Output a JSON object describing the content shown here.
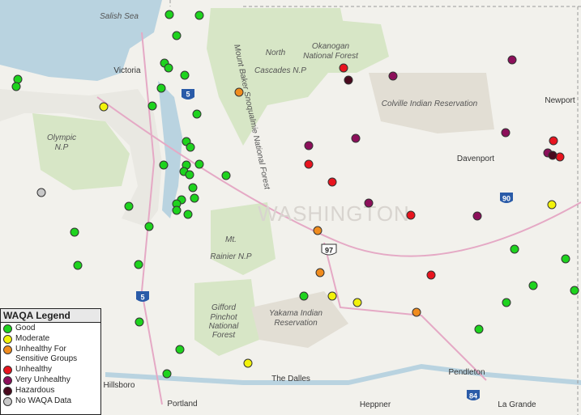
{
  "labels": [
    "Salish Sea",
    "Victoria",
    "North",
    "Cascades N.P",
    "Okanogan",
    "National Forest",
    "Colville Indian Reservation",
    "Newport",
    "Olympic",
    "N.P",
    "Davenport",
    "Mount Baker Snoqualmie National Forest",
    "WASHINGTON",
    "Mt.",
    "Rainier N.P",
    "Gifford",
    "Pinchot",
    "National",
    "Forest",
    "Yakama Indian",
    "Reservation",
    "Hillsboro",
    "Portland",
    "The Dalles",
    "Pendleton",
    "Heppner",
    "La Grande"
  ],
  "shields": [
    "5",
    "90",
    "97",
    "5",
    "84"
  ],
  "legend": {
    "title": "WAQA Legend",
    "items": [
      "Good",
      "Moderate",
      "Unhealthy For Sensitive Groups",
      "Unhealthy",
      "Very Unhealthy",
      "Hazardous",
      "No WAQA Data"
    ]
  }
}
